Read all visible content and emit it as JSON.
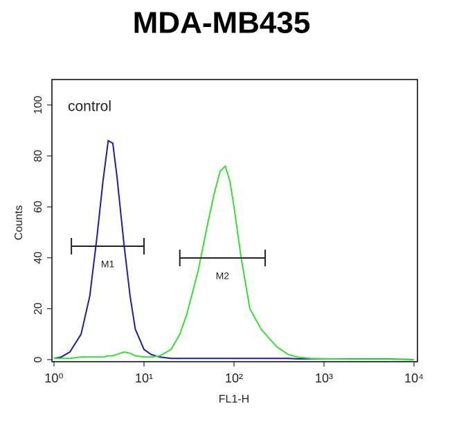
{
  "chart_data": {
    "type": "line",
    "title": "MDA-MB435",
    "annotation": "control",
    "xlabel": "FL1-H",
    "ylabel": "Counts",
    "xscale": "log",
    "xlim": [
      1,
      10000
    ],
    "ylim": [
      0,
      110
    ],
    "xticks": [
      {
        "value": 1,
        "label": "10⁰"
      },
      {
        "value": 10,
        "label": "10¹"
      },
      {
        "value": 100,
        "label": "10²"
      },
      {
        "value": 1000,
        "label": "10³"
      },
      {
        "value": 10000,
        "label": "10⁴"
      }
    ],
    "yticks": [
      0,
      20,
      40,
      60,
      80,
      100
    ],
    "x": [
      1,
      1.2,
      1.5,
      2,
      2.5,
      3,
      3.5,
      4,
      4.5,
      5,
      6,
      7,
      8,
      10,
      12,
      15,
      20,
      25,
      30,
      40,
      50,
      60,
      70,
      80,
      90,
      100,
      120,
      150,
      200,
      250,
      300,
      400,
      500,
      700,
      1000,
      2000,
      5000,
      10000
    ],
    "series": [
      {
        "color": "#1c1ca8",
        "values": [
          0.5,
          1,
          3,
          10,
          25,
          48,
          70,
          86,
          85,
          72,
          45,
          25,
          12,
          4,
          2,
          1,
          0.5,
          0.5,
          0.5,
          0.5,
          0.5,
          0.5,
          0.5,
          0.5,
          0.5,
          0.5,
          0.5,
          0.5,
          0.5,
          0.5,
          0.5,
          0.5,
          0.3,
          0.3,
          0.3,
          0.3,
          0.3,
          0
        ]
      },
      {
        "color": "#33e033",
        "values": [
          0.5,
          0.5,
          0.5,
          1,
          1,
          1,
          1,
          1.5,
          1.5,
          2,
          3,
          2.5,
          1.5,
          1,
          1,
          1.5,
          4,
          10,
          18,
          35,
          52,
          65,
          74,
          76,
          70,
          60,
          40,
          20,
          12,
          8,
          5,
          2,
          1,
          0.5,
          0.3,
          0.2,
          0.2,
          0
        ]
      }
    ],
    "markers": [
      {
        "label": "M1",
        "range": [
          1.56,
          10
        ]
      },
      {
        "label": "M2",
        "range": [
          25,
          222
        ]
      }
    ]
  }
}
